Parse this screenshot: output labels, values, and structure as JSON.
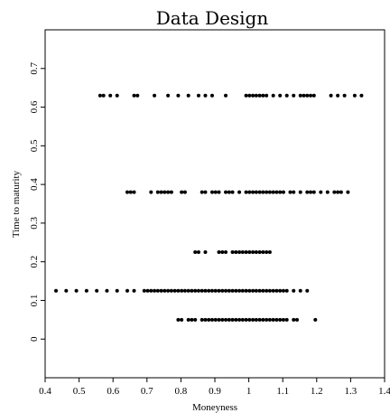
{
  "chart_data": {
    "type": "scatter",
    "title": "Data Design",
    "xlabel": "Moneyness",
    "ylabel": "Time to maturity",
    "xlim": [
      0.4,
      1.4
    ],
    "ylim": [
      -0.1,
      0.8
    ],
    "xticks": [
      "0.4",
      "0.5",
      "0.6",
      "0.7",
      "0.8",
      "0.9",
      "1",
      "1.1",
      "1.2",
      "1.3",
      "1.4"
    ],
    "yticks": [
      "0",
      "0.1",
      "0.2",
      "0.3",
      "0.4",
      "0.5",
      "0.6",
      "0.7"
    ],
    "grid": false,
    "point_color": "#000000",
    "series": [
      {
        "values": [
          {
            "x": 0.792,
            "y": 0.05
          },
          {
            "x": 0.802,
            "y": 0.05
          },
          {
            "x": 0.822,
            "y": 0.05
          },
          {
            "x": 0.832,
            "y": 0.05
          },
          {
            "x": 0.842,
            "y": 0.05
          },
          {
            "x": 0.862,
            "y": 0.05
          },
          {
            "x": 0.872,
            "y": 0.05
          },
          {
            "x": 0.882,
            "y": 0.05
          },
          {
            "x": 0.892,
            "y": 0.05
          },
          {
            "x": 0.902,
            "y": 0.05
          },
          {
            "x": 0.912,
            "y": 0.05
          },
          {
            "x": 0.922,
            "y": 0.05
          },
          {
            "x": 0.932,
            "y": 0.05
          },
          {
            "x": 0.942,
            "y": 0.05
          },
          {
            "x": 0.952,
            "y": 0.05
          },
          {
            "x": 0.962,
            "y": 0.05
          },
          {
            "x": 0.972,
            "y": 0.05
          },
          {
            "x": 0.982,
            "y": 0.05
          },
          {
            "x": 0.992,
            "y": 0.05
          },
          {
            "x": 1.002,
            "y": 0.05
          },
          {
            "x": 1.012,
            "y": 0.05
          },
          {
            "x": 1.022,
            "y": 0.05
          },
          {
            "x": 1.032,
            "y": 0.05
          },
          {
            "x": 1.042,
            "y": 0.05
          },
          {
            "x": 1.052,
            "y": 0.05
          },
          {
            "x": 1.062,
            "y": 0.05
          },
          {
            "x": 1.072,
            "y": 0.05
          },
          {
            "x": 1.082,
            "y": 0.05
          },
          {
            "x": 1.092,
            "y": 0.05
          },
          {
            "x": 1.102,
            "y": 0.05
          },
          {
            "x": 1.112,
            "y": 0.05
          },
          {
            "x": 1.132,
            "y": 0.05
          },
          {
            "x": 1.142,
            "y": 0.05
          },
          {
            "x": 1.196,
            "y": 0.05
          },
          {
            "x": 0.432,
            "y": 0.125
          },
          {
            "x": 0.462,
            "y": 0.125
          },
          {
            "x": 0.492,
            "y": 0.125
          },
          {
            "x": 0.522,
            "y": 0.125
          },
          {
            "x": 0.552,
            "y": 0.125
          },
          {
            "x": 0.582,
            "y": 0.125
          },
          {
            "x": 0.612,
            "y": 0.125
          },
          {
            "x": 0.642,
            "y": 0.125
          },
          {
            "x": 0.662,
            "y": 0.125
          },
          {
            "x": 0.692,
            "y": 0.125
          },
          {
            "x": 0.702,
            "y": 0.125
          },
          {
            "x": 0.712,
            "y": 0.125
          },
          {
            "x": 0.722,
            "y": 0.125
          },
          {
            "x": 0.732,
            "y": 0.125
          },
          {
            "x": 0.742,
            "y": 0.125
          },
          {
            "x": 0.752,
            "y": 0.125
          },
          {
            "x": 0.762,
            "y": 0.125
          },
          {
            "x": 0.772,
            "y": 0.125
          },
          {
            "x": 0.782,
            "y": 0.125
          },
          {
            "x": 0.792,
            "y": 0.125
          },
          {
            "x": 0.802,
            "y": 0.125
          },
          {
            "x": 0.812,
            "y": 0.125
          },
          {
            "x": 0.822,
            "y": 0.125
          },
          {
            "x": 0.832,
            "y": 0.125
          },
          {
            "x": 0.842,
            "y": 0.125
          },
          {
            "x": 0.852,
            "y": 0.125
          },
          {
            "x": 0.862,
            "y": 0.125
          },
          {
            "x": 0.872,
            "y": 0.125
          },
          {
            "x": 0.882,
            "y": 0.125
          },
          {
            "x": 0.892,
            "y": 0.125
          },
          {
            "x": 0.902,
            "y": 0.125
          },
          {
            "x": 0.912,
            "y": 0.125
          },
          {
            "x": 0.922,
            "y": 0.125
          },
          {
            "x": 0.932,
            "y": 0.125
          },
          {
            "x": 0.942,
            "y": 0.125
          },
          {
            "x": 0.952,
            "y": 0.125
          },
          {
            "x": 0.962,
            "y": 0.125
          },
          {
            "x": 0.972,
            "y": 0.125
          },
          {
            "x": 0.982,
            "y": 0.125
          },
          {
            "x": 0.992,
            "y": 0.125
          },
          {
            "x": 1.002,
            "y": 0.125
          },
          {
            "x": 1.012,
            "y": 0.125
          },
          {
            "x": 1.022,
            "y": 0.125
          },
          {
            "x": 1.032,
            "y": 0.125
          },
          {
            "x": 1.042,
            "y": 0.125
          },
          {
            "x": 1.052,
            "y": 0.125
          },
          {
            "x": 1.062,
            "y": 0.125
          },
          {
            "x": 1.072,
            "y": 0.125
          },
          {
            "x": 1.082,
            "y": 0.125
          },
          {
            "x": 1.092,
            "y": 0.125
          },
          {
            "x": 1.102,
            "y": 0.125
          },
          {
            "x": 1.112,
            "y": 0.125
          },
          {
            "x": 1.132,
            "y": 0.125
          },
          {
            "x": 1.152,
            "y": 0.125
          },
          {
            "x": 1.172,
            "y": 0.125
          },
          {
            "x": 0.842,
            "y": 0.225
          },
          {
            "x": 0.852,
            "y": 0.225
          },
          {
            "x": 0.872,
            "y": 0.225
          },
          {
            "x": 0.912,
            "y": 0.225
          },
          {
            "x": 0.922,
            "y": 0.225
          },
          {
            "x": 0.932,
            "y": 0.225
          },
          {
            "x": 0.952,
            "y": 0.225
          },
          {
            "x": 0.962,
            "y": 0.225
          },
          {
            "x": 0.972,
            "y": 0.225
          },
          {
            "x": 0.982,
            "y": 0.225
          },
          {
            "x": 0.992,
            "y": 0.225
          },
          {
            "x": 1.002,
            "y": 0.225
          },
          {
            "x": 1.012,
            "y": 0.225
          },
          {
            "x": 1.022,
            "y": 0.225
          },
          {
            "x": 1.032,
            "y": 0.225
          },
          {
            "x": 1.042,
            "y": 0.225
          },
          {
            "x": 1.052,
            "y": 0.225
          },
          {
            "x": 1.062,
            "y": 0.225
          },
          {
            "x": 0.642,
            "y": 0.38
          },
          {
            "x": 0.652,
            "y": 0.38
          },
          {
            "x": 0.662,
            "y": 0.38
          },
          {
            "x": 0.712,
            "y": 0.38
          },
          {
            "x": 0.732,
            "y": 0.38
          },
          {
            "x": 0.742,
            "y": 0.38
          },
          {
            "x": 0.752,
            "y": 0.38
          },
          {
            "x": 0.762,
            "y": 0.38
          },
          {
            "x": 0.772,
            "y": 0.38
          },
          {
            "x": 0.802,
            "y": 0.38
          },
          {
            "x": 0.812,
            "y": 0.38
          },
          {
            "x": 0.862,
            "y": 0.38
          },
          {
            "x": 0.872,
            "y": 0.38
          },
          {
            "x": 0.892,
            "y": 0.38
          },
          {
            "x": 0.902,
            "y": 0.38
          },
          {
            "x": 0.912,
            "y": 0.38
          },
          {
            "x": 0.932,
            "y": 0.38
          },
          {
            "x": 0.942,
            "y": 0.38
          },
          {
            "x": 0.952,
            "y": 0.38
          },
          {
            "x": 0.972,
            "y": 0.38
          },
          {
            "x": 0.992,
            "y": 0.38
          },
          {
            "x": 1.002,
            "y": 0.38
          },
          {
            "x": 1.012,
            "y": 0.38
          },
          {
            "x": 1.022,
            "y": 0.38
          },
          {
            "x": 1.032,
            "y": 0.38
          },
          {
            "x": 1.042,
            "y": 0.38
          },
          {
            "x": 1.052,
            "y": 0.38
          },
          {
            "x": 1.062,
            "y": 0.38
          },
          {
            "x": 1.072,
            "y": 0.38
          },
          {
            "x": 1.082,
            "y": 0.38
          },
          {
            "x": 1.092,
            "y": 0.38
          },
          {
            "x": 1.102,
            "y": 0.38
          },
          {
            "x": 1.122,
            "y": 0.38
          },
          {
            "x": 1.132,
            "y": 0.38
          },
          {
            "x": 1.152,
            "y": 0.38
          },
          {
            "x": 1.172,
            "y": 0.38
          },
          {
            "x": 1.182,
            "y": 0.38
          },
          {
            "x": 1.192,
            "y": 0.38
          },
          {
            "x": 1.212,
            "y": 0.38
          },
          {
            "x": 1.232,
            "y": 0.38
          },
          {
            "x": 1.252,
            "y": 0.38
          },
          {
            "x": 1.262,
            "y": 0.38
          },
          {
            "x": 1.272,
            "y": 0.38
          },
          {
            "x": 1.292,
            "y": 0.38
          },
          {
            "x": 0.562,
            "y": 0.63
          },
          {
            "x": 0.572,
            "y": 0.63
          },
          {
            "x": 0.592,
            "y": 0.63
          },
          {
            "x": 0.612,
            "y": 0.63
          },
          {
            "x": 0.662,
            "y": 0.63
          },
          {
            "x": 0.672,
            "y": 0.63
          },
          {
            "x": 0.722,
            "y": 0.63
          },
          {
            "x": 0.762,
            "y": 0.63
          },
          {
            "x": 0.792,
            "y": 0.63
          },
          {
            "x": 0.822,
            "y": 0.63
          },
          {
            "x": 0.852,
            "y": 0.63
          },
          {
            "x": 0.872,
            "y": 0.63
          },
          {
            "x": 0.892,
            "y": 0.63
          },
          {
            "x": 0.932,
            "y": 0.63
          },
          {
            "x": 0.992,
            "y": 0.63
          },
          {
            "x": 1.002,
            "y": 0.63
          },
          {
            "x": 1.012,
            "y": 0.63
          },
          {
            "x": 1.022,
            "y": 0.63
          },
          {
            "x": 1.032,
            "y": 0.63
          },
          {
            "x": 1.042,
            "y": 0.63
          },
          {
            "x": 1.052,
            "y": 0.63
          },
          {
            "x": 1.072,
            "y": 0.63
          },
          {
            "x": 1.092,
            "y": 0.63
          },
          {
            "x": 1.112,
            "y": 0.63
          },
          {
            "x": 1.132,
            "y": 0.63
          },
          {
            "x": 1.152,
            "y": 0.63
          },
          {
            "x": 1.162,
            "y": 0.63
          },
          {
            "x": 1.172,
            "y": 0.63
          },
          {
            "x": 1.182,
            "y": 0.63
          },
          {
            "x": 1.192,
            "y": 0.63
          },
          {
            "x": 1.242,
            "y": 0.63
          },
          {
            "x": 1.262,
            "y": 0.63
          },
          {
            "x": 1.282,
            "y": 0.63
          },
          {
            "x": 1.312,
            "y": 0.63
          },
          {
            "x": 1.332,
            "y": 0.63
          }
        ]
      }
    ]
  }
}
